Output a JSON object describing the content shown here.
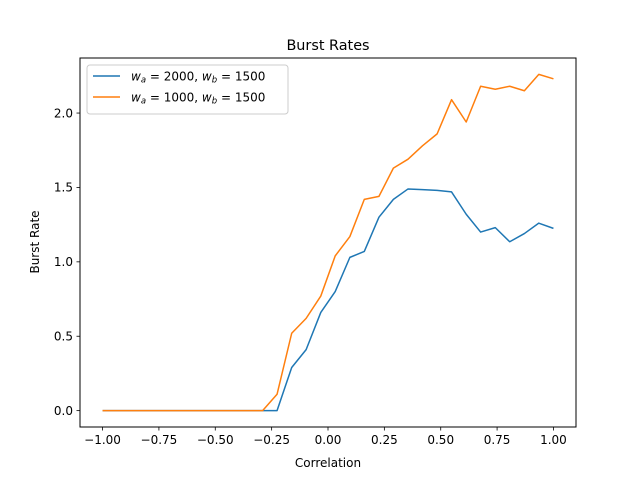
{
  "chart_data": {
    "type": "line",
    "title": "Burst Rates",
    "xlabel": "Correlation",
    "ylabel": "Burst Rate",
    "xlim": [
      -1.1,
      1.1
    ],
    "ylim": [
      -0.11,
      2.37
    ],
    "xticks": [
      -1.0,
      -0.75,
      -0.5,
      -0.25,
      0.0,
      0.25,
      0.5,
      0.75,
      1.0
    ],
    "xtick_labels": [
      "−1.00",
      "−0.75",
      "−0.50",
      "−0.25",
      "0.00",
      "0.25",
      "0.50",
      "0.75",
      "1.00"
    ],
    "yticks": [
      0.0,
      0.5,
      1.0,
      1.5,
      2.0
    ],
    "ytick_labels": [
      "0.0",
      "0.5",
      "1.0",
      "1.5",
      "2.0"
    ],
    "grid": false,
    "legend_position": "upper-left",
    "x": [
      -1.0,
      -0.935,
      -0.871,
      -0.806,
      -0.742,
      -0.677,
      -0.613,
      -0.548,
      -0.484,
      -0.419,
      -0.355,
      -0.29,
      -0.226,
      -0.161,
      -0.097,
      -0.032,
      0.032,
      0.097,
      0.161,
      0.226,
      0.29,
      0.355,
      0.419,
      0.484,
      0.548,
      0.613,
      0.677,
      0.742,
      0.806,
      0.871,
      0.935,
      1.0
    ],
    "series": [
      {
        "name_parts": {
          "a_sym": "w",
          "a_sub": "a",
          "a_val": " = 2000, ",
          "b_sym": "w",
          "b_sub": "b",
          "b_val": " = 1500"
        },
        "color": "#1f77b4",
        "values": [
          0,
          0,
          0,
          0,
          0,
          0,
          0,
          0,
          0,
          0,
          0,
          0,
          0,
          0.29,
          0.41,
          0.66,
          0.8,
          1.03,
          1.07,
          1.3,
          1.42,
          1.49,
          1.485,
          1.48,
          1.47,
          1.32,
          1.2,
          1.23,
          1.135,
          1.19,
          1.26,
          1.225
        ]
      },
      {
        "name_parts": {
          "a_sym": "w",
          "a_sub": "a",
          "a_val": " = 1000, ",
          "b_sym": "w",
          "b_sub": "b",
          "b_val": " = 1500"
        },
        "color": "#ff7f0e",
        "values": [
          0,
          0,
          0,
          0,
          0,
          0,
          0,
          0,
          0,
          0,
          0,
          0,
          0.11,
          0.52,
          0.62,
          0.77,
          1.04,
          1.17,
          1.42,
          1.44,
          1.63,
          1.69,
          1.78,
          1.86,
          2.09,
          1.94,
          2.18,
          2.16,
          2.18,
          2.15,
          2.26,
          2.23
        ]
      }
    ]
  }
}
